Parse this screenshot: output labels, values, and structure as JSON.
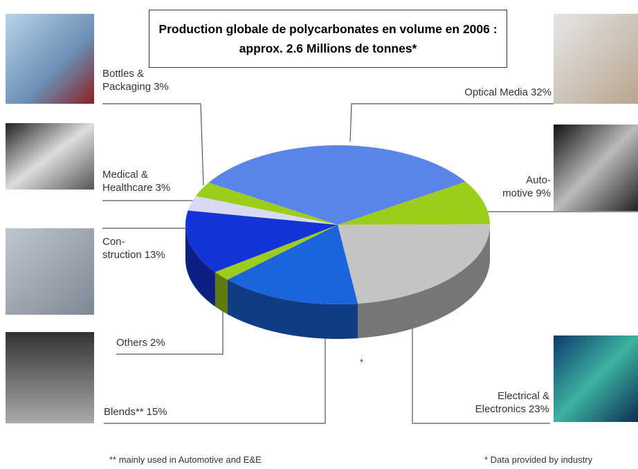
{
  "chart_data": {
    "type": "pie",
    "title": "Production globale de polycarbonates en volume en 2006 : approx. 2.6 Millions de tonnes*",
    "categories": [
      "Optical Media",
      "Auto-\nmotive",
      "Electrical &\nElectronics",
      "Blends**",
      "Others",
      "Con-\nstruction",
      "Medical &\nHealthcare",
      "Bottles &\nPackaging"
    ],
    "values": [
      32,
      9,
      23,
      15,
      2,
      13,
      3,
      3
    ],
    "value_labels": [
      "32%",
      "9%",
      "23%",
      "15%",
      "2%",
      "13%",
      "3%",
      "3%"
    ],
    "colors": [
      "#5a84e8",
      "#9ccc1c",
      "#c4c4c4",
      "#1c64dc",
      "#9ccc1c",
      "#1434d8",
      "#d9d9f4",
      "#9ccc1c"
    ],
    "annotations": [
      "*",
      "** mainly used in Automotive and E&E",
      "* Data provided by industry"
    ]
  }
}
